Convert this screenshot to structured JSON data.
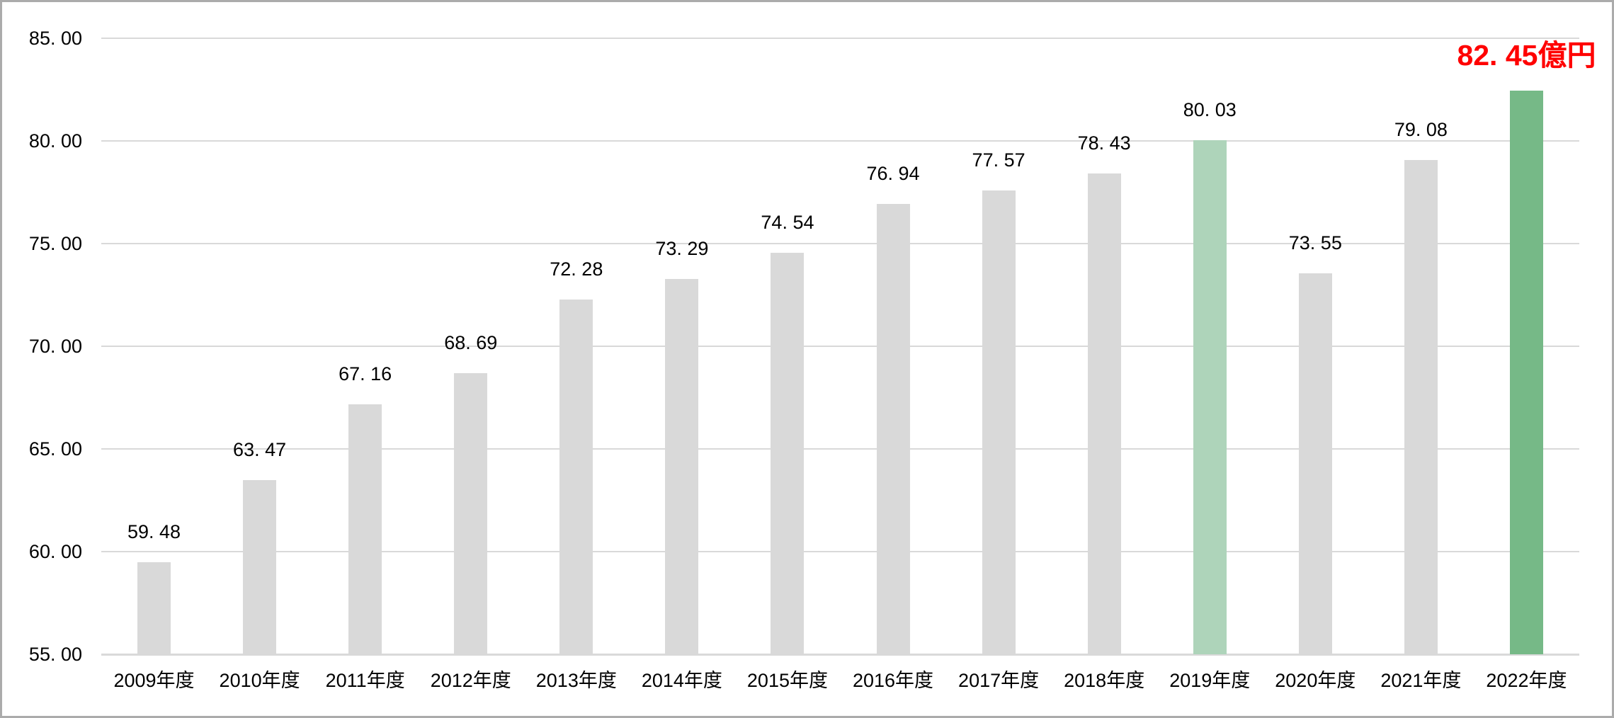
{
  "chart_data": {
    "type": "bar",
    "title": "",
    "xlabel": "",
    "ylabel": "",
    "ylim": [
      55,
      85
    ],
    "grid": true,
    "legend": "none",
    "categories": [
      "2009年度",
      "2010年度",
      "2011年度",
      "2012年度",
      "2013年度",
      "2014年度",
      "2015年度",
      "2016年度",
      "2017年度",
      "2018年度",
      "2019年度",
      "2020年度",
      "2021年度",
      "2022年度"
    ],
    "values": [
      59.48,
      63.47,
      67.16,
      68.69,
      72.28,
      73.29,
      74.54,
      76.94,
      77.57,
      78.43,
      80.03,
      73.55,
      79.08,
      82.45
    ],
    "value_labels": [
      "59. 48",
      "63. 47",
      "67. 16",
      "68. 69",
      "72. 28",
      "73. 29",
      "74. 54",
      "76. 94",
      "77. 57",
      "78. 43",
      "80. 03",
      "73. 55",
      "79. 08",
      "82. 45億円"
    ],
    "label_styles": [
      "normal",
      "normal",
      "normal",
      "normal",
      "normal",
      "normal",
      "normal",
      "normal",
      "normal",
      "normal",
      "normal",
      "normal",
      "normal",
      "emphasis"
    ],
    "bar_color_keys": [
      "default",
      "default",
      "default",
      "default",
      "default",
      "default",
      "default",
      "default",
      "default",
      "default",
      "highlight_light",
      "default",
      "default",
      "highlight_strong"
    ],
    "y_ticks": [
      {
        "value": 85,
        "label": "85. 00"
      },
      {
        "value": 80,
        "label": "80. 00"
      },
      {
        "value": 75,
        "label": "75. 00"
      },
      {
        "value": 70,
        "label": "70. 00"
      },
      {
        "value": 65,
        "label": "65. 00"
      },
      {
        "value": 60,
        "label": "60. 00"
      },
      {
        "value": 55,
        "label": "55. 00"
      }
    ],
    "unit": "億円"
  },
  "colors": {
    "bar_default": "#d9d9d9",
    "bar_highlight_light": "#aed4ba",
    "bar_highlight_strong": "#76b987",
    "emphasis_label": "#ff0000",
    "gridline": "#d9d9d9",
    "text": "#000000",
    "frame": "#ababab",
    "background": "#ffffff"
  }
}
